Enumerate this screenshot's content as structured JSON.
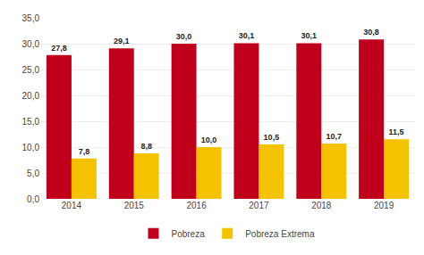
{
  "chart_data": {
    "type": "bar",
    "categories": [
      "2014",
      "2015",
      "2016",
      "2017",
      "2018",
      "2019"
    ],
    "series": [
      {
        "name": "Pobreza",
        "color": "#C0001A",
        "values": [
          27.8,
          29.1,
          30.0,
          30.1,
          30.1,
          30.8
        ],
        "value_labels": [
          "27,8",
          "29,1",
          "30,0",
          "30,1",
          "30,1",
          "30,8"
        ]
      },
      {
        "name": "Pobreza Extrema",
        "color": "#F5C200",
        "values": [
          7.8,
          8.8,
          10.0,
          10.5,
          10.7,
          11.5
        ],
        "value_labels": [
          "7,8",
          "8,8",
          "10,0",
          "10,5",
          "10,7",
          "11,5"
        ]
      }
    ],
    "ylim": [
      0,
      35
    ],
    "yticks": [
      {
        "value": 0.0,
        "label": "0,0"
      },
      {
        "value": 5.0,
        "label": "5,0"
      },
      {
        "value": 10.0,
        "label": "10,0"
      },
      {
        "value": 15.0,
        "label": "15,0"
      },
      {
        "value": 20.0,
        "label": "20,0"
      },
      {
        "value": 25.0,
        "label": "25,0"
      },
      {
        "value": 30.0,
        "label": "30,0"
      },
      {
        "value": 35.0,
        "label": "35,0"
      }
    ],
    "grid": true,
    "data_labels": true,
    "legend": "bottom"
  }
}
